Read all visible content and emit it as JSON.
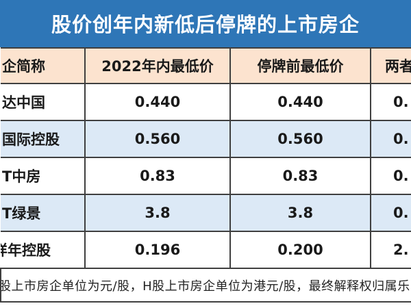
{
  "chart_data": {
    "type": "table",
    "title": "股价创年内新低后停牌的上市房企",
    "columns": [
      "企简称",
      "2022年内最低价",
      "停牌前最低价",
      "两者"
    ],
    "rows": [
      [
        "达中国",
        "0.440",
        "0.440",
        "0."
      ],
      [
        "国际控股",
        "0.560",
        "0.560",
        "0."
      ],
      [
        "T中房",
        "0.83",
        "0.83",
        "0."
      ],
      [
        "T绿景",
        "3.8",
        "3.8",
        "0."
      ],
      [
        "样年控股",
        "0.196",
        "0.200",
        "2."
      ]
    ],
    "note": "股上市房企单位为元/股，H股上市房企单位为港元/股，最终解释权归属乐",
    "layout": {
      "cropped": "table is cut off on left and right edges",
      "row_striping": "white / light-blue alternating, peach header"
    }
  },
  "colors": {
    "title_bg": "#2E76B7",
    "title_text": "#FFFFFF",
    "header_bg": "#FCE3CF",
    "alt_row_bg": "#DCE9F6",
    "row_bg": "#FFFFFF",
    "border": "#3F3F3F",
    "body_text": "#1A1A1A"
  }
}
